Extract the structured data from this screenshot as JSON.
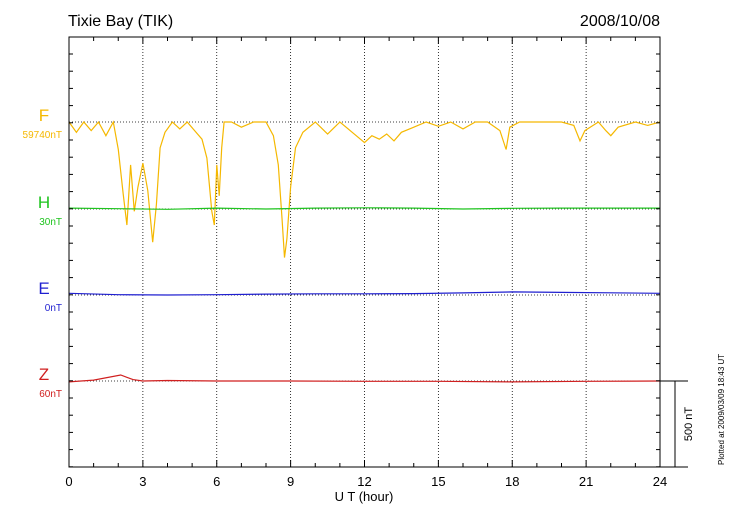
{
  "header": {
    "station": "Tixie Bay (TIK)",
    "date": "2008/10/08"
  },
  "side_note": "Plotted at 2009/03/09 18:43 UT",
  "chart_data": {
    "type": "line",
    "title": "Tixie Bay (TIK)",
    "xlabel": "U T (hour)",
    "xlim": [
      0,
      24
    ],
    "xticks": [
      0,
      3,
      6,
      9,
      12,
      15,
      18,
      21,
      24
    ],
    "xtick_labels": [
      "0",
      "3",
      "6",
      "9",
      "12",
      "15",
      "18",
      "21",
      "24"
    ],
    "grid": "vertical dotted at every 3 hours",
    "scale_bar": {
      "label": "500 nT",
      "value_nT": 500
    },
    "series": [
      {
        "name": "F",
        "baseline_label": "59740nT",
        "baseline_nT": 59740,
        "color": "#f5b800",
        "x": [
          0,
          0.3,
          0.6,
          0.9,
          1.2,
          1.5,
          1.8,
          2.0,
          2.2,
          2.35,
          2.5,
          2.65,
          2.8,
          3.0,
          3.2,
          3.4,
          3.55,
          3.7,
          3.9,
          4.2,
          4.5,
          4.8,
          5.1,
          5.4,
          5.6,
          5.8,
          5.9,
          6.0,
          6.1,
          6.2,
          6.3,
          6.6,
          7.0,
          7.5,
          8.0,
          8.3,
          8.5,
          8.65,
          8.75,
          8.85,
          9.0,
          9.2,
          9.5,
          10.0,
          10.5,
          11.0,
          11.5,
          12.0,
          12.3,
          12.6,
          12.9,
          13.2,
          13.5,
          14.0,
          14.5,
          15.0,
          15.5,
          16.0,
          16.5,
          17.0,
          17.5,
          17.75,
          17.9,
          18.3,
          19.0,
          19.5,
          20.0,
          20.5,
          20.75,
          20.95,
          21.5,
          21.8,
          22.0,
          22.3,
          23.0,
          23.5,
          24.0
        ],
        "y": [
          0,
          -60,
          0,
          -50,
          0,
          -80,
          0,
          -160,
          -420,
          -600,
          -250,
          -520,
          -380,
          -240,
          -400,
          -700,
          -480,
          -150,
          -60,
          0,
          -40,
          0,
          -50,
          -100,
          -210,
          -520,
          -600,
          -250,
          -430,
          -150,
          0,
          0,
          -30,
          0,
          0,
          -80,
          -250,
          -560,
          -790,
          -680,
          -380,
          -150,
          -60,
          0,
          -70,
          0,
          -60,
          -120,
          -80,
          -100,
          -70,
          -110,
          -60,
          -30,
          0,
          -25,
          0,
          -40,
          0,
          0,
          -50,
          -160,
          -30,
          0,
          0,
          0,
          0,
          -20,
          -110,
          -50,
          0,
          -50,
          -80,
          -30,
          0,
          -20,
          0
        ]
      },
      {
        "name": "H",
        "baseline_label": "30nT",
        "baseline_nT": 30,
        "color": "#1ec41e",
        "x": [
          0,
          2,
          4,
          6,
          8,
          10,
          12,
          14,
          16,
          18,
          20,
          22,
          24
        ],
        "y": [
          5,
          2,
          -2,
          5,
          0,
          5,
          7,
          5,
          0,
          4,
          5,
          5,
          5
        ]
      },
      {
        "name": "E",
        "baseline_label": "0nT",
        "baseline_nT": 0,
        "color": "#1f1fd0",
        "x": [
          0,
          2,
          4,
          6,
          8,
          10,
          12,
          14,
          16,
          18,
          20,
          22,
          24
        ],
        "y": [
          10,
          2,
          0,
          2,
          5,
          7,
          7,
          8,
          12,
          18,
          15,
          13,
          10
        ]
      },
      {
        "name": "Z",
        "baseline_label": "60nT",
        "baseline_nT": 60,
        "color": "#d01f1f",
        "x": [
          0,
          1,
          2.1,
          2.6,
          3,
          4,
          6,
          9,
          12,
          15,
          18,
          21,
          24
        ],
        "y": [
          -5,
          5,
          35,
          8,
          0,
          3,
          0,
          0,
          -2,
          -2,
          -5,
          -2,
          0
        ]
      }
    ]
  }
}
